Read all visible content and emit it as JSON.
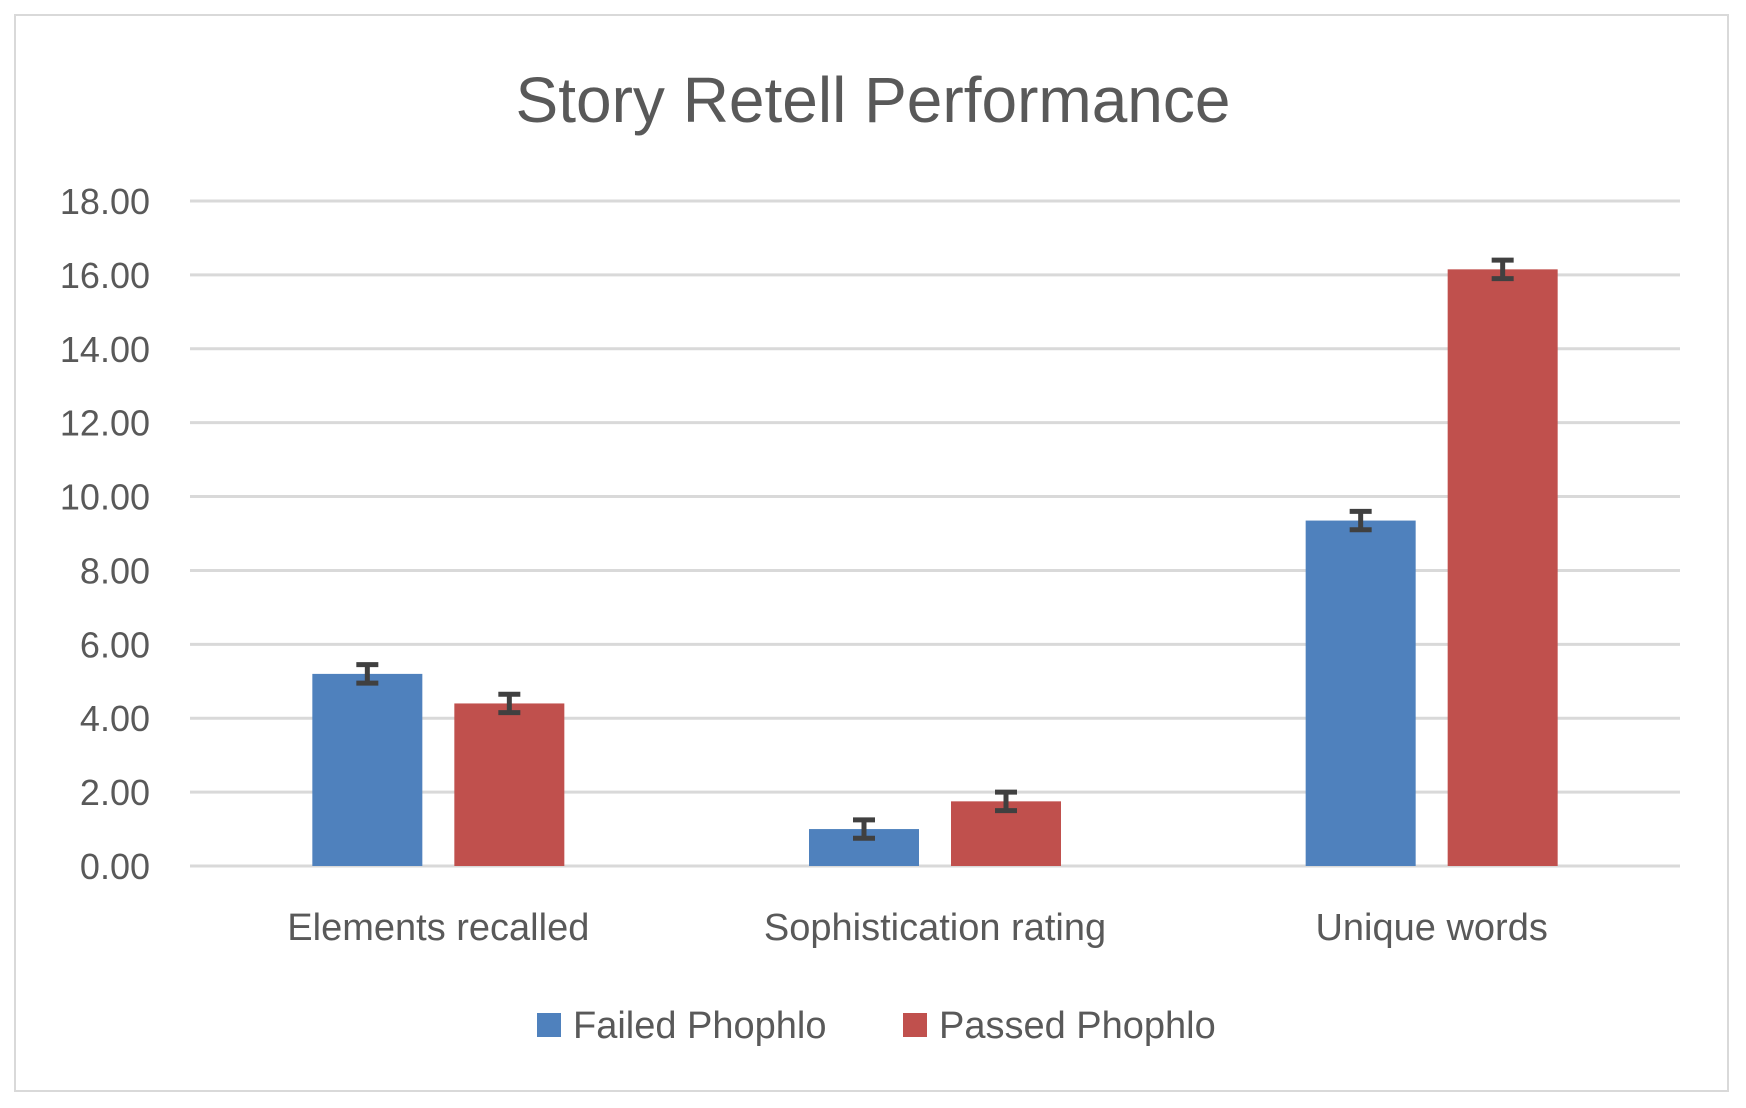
{
  "chart_data": {
    "type": "bar",
    "title": "Story Retell Performance",
    "xlabel": "",
    "ylabel": "",
    "categories": [
      "Elements recalled",
      "Sophistication rating",
      "Unique words"
    ],
    "series": [
      {
        "name": "Failed Phophlo",
        "color": "#4f81bd",
        "values": [
          5.2,
          1.0,
          9.35
        ],
        "errors": [
          0.25,
          0.25,
          0.25
        ]
      },
      {
        "name": "Passed Phophlo",
        "color": "#c0504d",
        "values": [
          4.4,
          1.75,
          16.15
        ],
        "errors": [
          0.25,
          0.25,
          0.25
        ]
      }
    ],
    "ylim": [
      0,
      18
    ],
    "yticks": [
      "0.00",
      "2.00",
      "4.00",
      "6.00",
      "8.00",
      "10.00",
      "12.00",
      "14.00",
      "16.00",
      "18.00"
    ],
    "grid": true,
    "legend_position": "bottom",
    "error_bar_color": "#404040"
  }
}
